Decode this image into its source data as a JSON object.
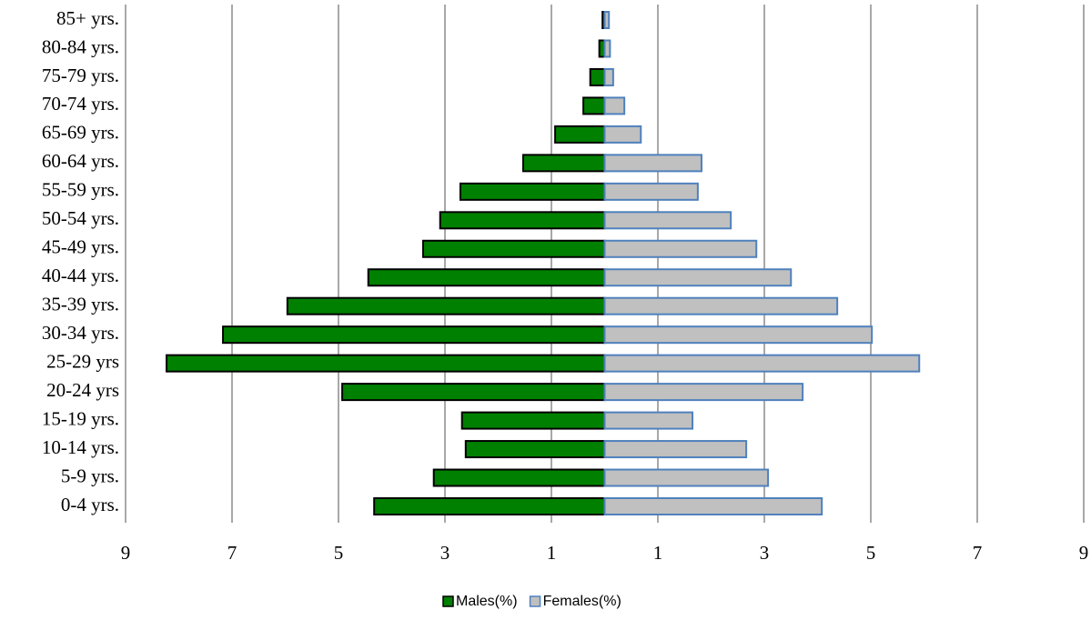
{
  "chart_data": {
    "type": "bar",
    "orientation": "horizontal",
    "stacked": false,
    "categories": [
      "85+ yrs.",
      "80-84 yrs.",
      "75-79 yrs.",
      "70-74 yrs.",
      "65-69 yrs.",
      "60-64 yrs.",
      "55-59 yrs.",
      "50-54 yrs.",
      "45-49 yrs.",
      "40-44 yrs.",
      "35-39 yrs.",
      "30-34 yrs.",
      "25-29 yrs",
      "20-24 yrs",
      "15-19 yrs.",
      "10-14 yrs.",
      "5-9 yrs.",
      "0-4 yrs."
    ],
    "series": [
      {
        "name": "Males(%)",
        "color": "#008000",
        "edge": "#000000",
        "values": [
          -0.04,
          -0.1,
          -0.27,
          -0.4,
          -0.93,
          -1.53,
          -2.71,
          -3.09,
          -3.41,
          -4.44,
          -5.96,
          -7.17,
          -8.23,
          -4.93,
          -2.68,
          -2.61,
          -3.21,
          -4.33
        ]
      },
      {
        "name": "Females(%)",
        "color": "#c0c0c0",
        "edge": "#4f81bd",
        "values": [
          0.08,
          0.1,
          0.16,
          0.37,
          0.68,
          1.82,
          1.75,
          2.37,
          2.85,
          3.5,
          4.37,
          5.02,
          5.91,
          3.72,
          1.65,
          2.66,
          3.07,
          4.08
        ]
      }
    ],
    "xlim": [
      -9,
      9
    ],
    "xticks": [
      {
        "value": -9,
        "label": "9"
      },
      {
        "value": -7,
        "label": "7"
      },
      {
        "value": -5,
        "label": "5"
      },
      {
        "value": -3,
        "label": "3"
      },
      {
        "value": -1,
        "label": "1"
      },
      1,
      3,
      5,
      7,
      9
    ],
    "grid": true,
    "legend": "bottom"
  }
}
